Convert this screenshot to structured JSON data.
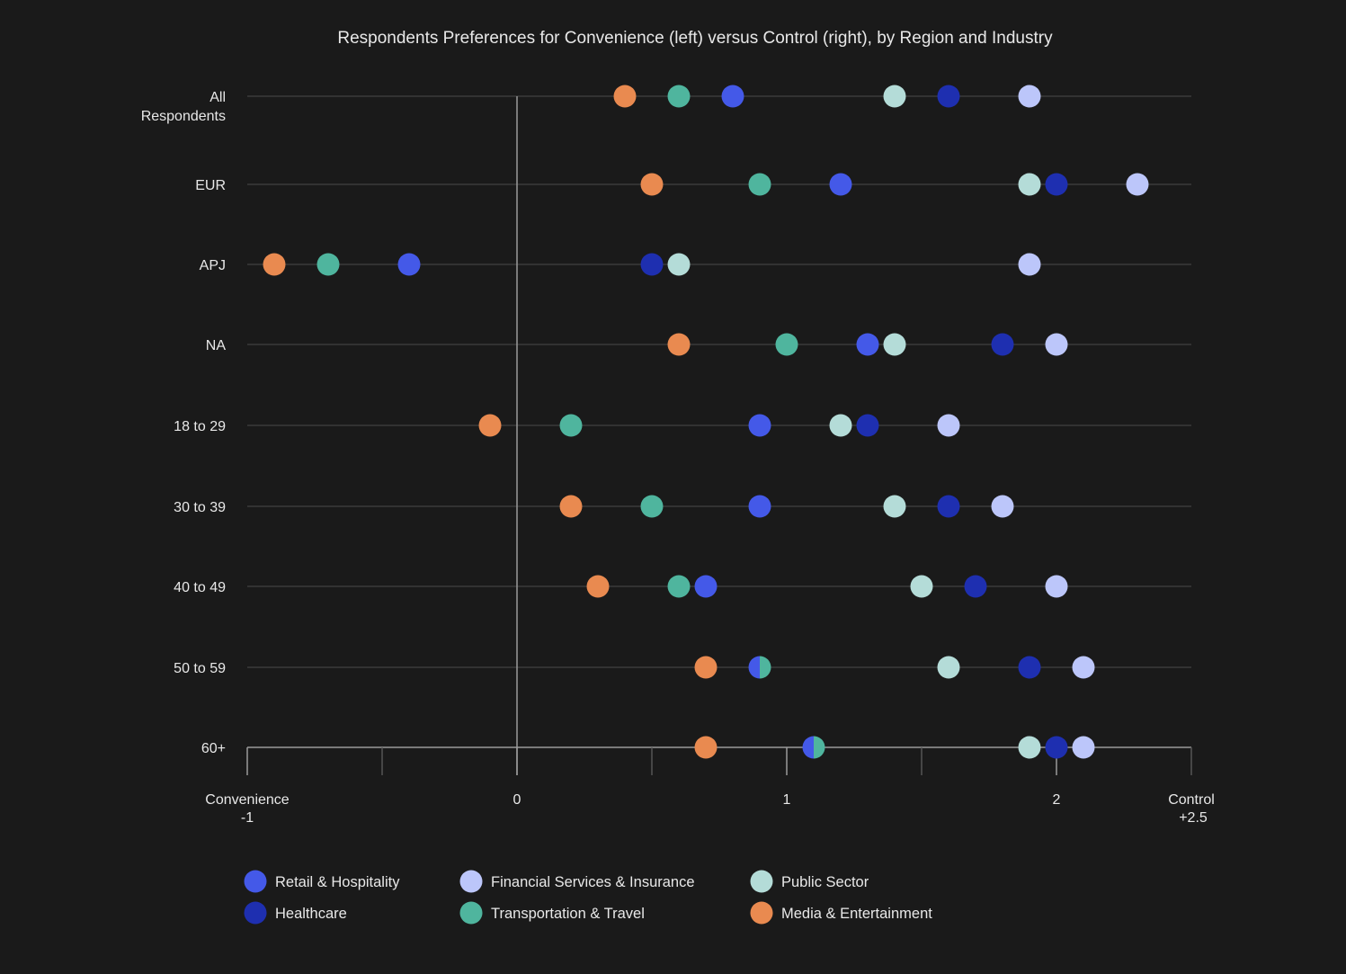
{
  "chart_data": {
    "type": "scatter",
    "title": "Respondents Preferences for Convenience (left) versus Control (right), by Region and Industry",
    "categories": [
      "All Respondents",
      "EUR",
      "APJ",
      "NA",
      "18 to 29",
      "30 to 39",
      "40 to 49",
      "50 to 59",
      "60+"
    ],
    "xlim": [
      -1,
      2.5
    ],
    "x_ticks": [
      {
        "value": -1,
        "label": "Convenience",
        "sublabel": "-1"
      },
      {
        "value": 0,
        "label": "0"
      },
      {
        "value": 1,
        "label": "1"
      },
      {
        "value": 2,
        "label": "2"
      },
      {
        "value": 2.5,
        "label": "Control",
        "sublabel": "+2.5"
      }
    ],
    "grid": true,
    "legend_placement": "bottom",
    "series": [
      {
        "name": "Retail & Hospitality",
        "color": "#4459e8",
        "values": [
          0.8,
          1.2,
          -0.4,
          1.3,
          0.9,
          0.9,
          0.7,
          0.9,
          1.1
        ]
      },
      {
        "name": "Healthcare",
        "color": "#1e2fb0",
        "values": [
          1.6,
          2.0,
          0.5,
          1.8,
          1.3,
          1.6,
          1.7,
          1.9,
          2.0
        ]
      },
      {
        "name": "Financial Services & Insurance",
        "color": "#bcc6fa",
        "values": [
          1.9,
          2.3,
          1.9,
          2.0,
          1.6,
          1.8,
          2.0,
          2.1,
          2.1
        ]
      },
      {
        "name": "Transportation & Travel",
        "color": "#4fb59e",
        "values": [
          0.6,
          0.9,
          -0.7,
          1.0,
          0.2,
          0.5,
          0.6,
          0.9,
          1.1
        ]
      },
      {
        "name": "Public Sector",
        "color": "#b4dcd8",
        "values": [
          1.4,
          1.9,
          0.6,
          1.4,
          1.2,
          1.4,
          1.5,
          1.6,
          1.9
        ]
      },
      {
        "name": "Media & Entertainment",
        "color": "#e98a50",
        "values": [
          0.4,
          0.5,
          -0.9,
          0.6,
          -0.1,
          0.2,
          0.3,
          0.7,
          0.7
        ]
      }
    ]
  }
}
